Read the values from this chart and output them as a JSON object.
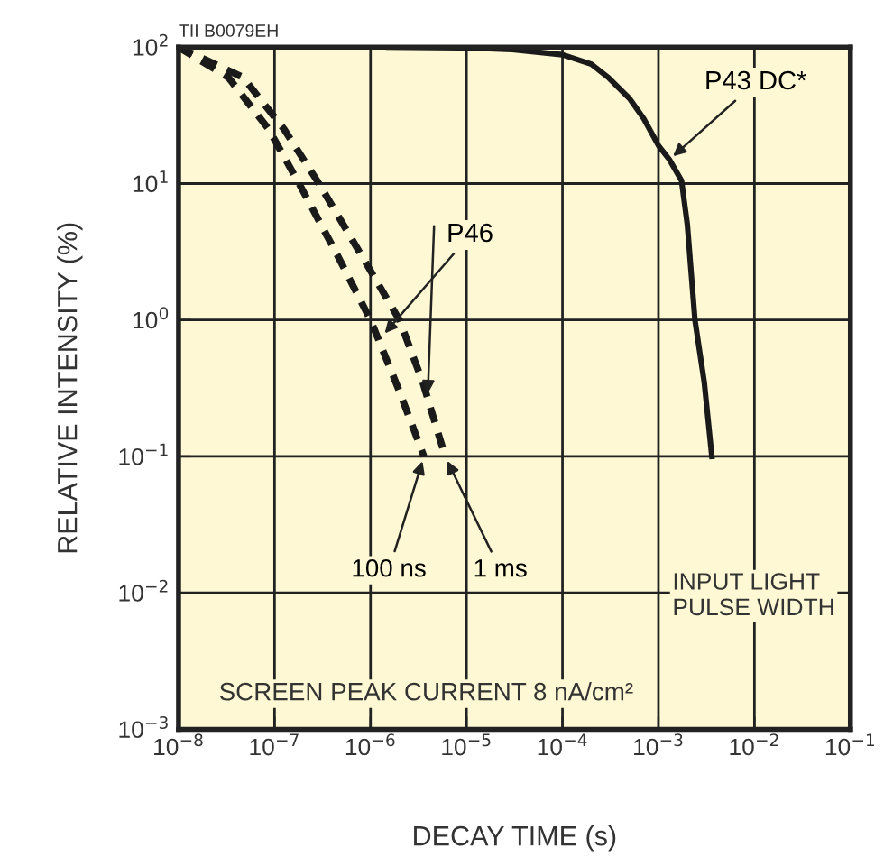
{
  "chart_data": {
    "type": "line",
    "xlabel": "DECAY TIME (s)",
    "ylabel": "RELATIVE INTENSITY (%)",
    "log": "xy",
    "grid": true,
    "xlim": [
      1e-08,
      0.1
    ],
    "ylim": [
      0.001,
      100
    ],
    "xticks": [
      {
        "value": 1e-08,
        "label": "10$^{−8}$"
      },
      {
        "value": 1e-07,
        "label": "10$^{−7}$"
      },
      {
        "value": 1e-06,
        "label": "10$^{−6}$"
      },
      {
        "value": 1e-05,
        "label": "10$^{−5}$"
      },
      {
        "value": 0.0001,
        "label": "10$^{−4}$"
      },
      {
        "value": 0.001,
        "label": "10$^{−3}$"
      },
      {
        "value": 0.01,
        "label": "10$^{−2}$"
      },
      {
        "value": 0.1,
        "label": "10$^{−1}$"
      }
    ],
    "yticks": [
      {
        "value": 0.001,
        "label": "10$^{−3}$"
      },
      {
        "value": 0.01,
        "label": "10$^{−2}$"
      },
      {
        "value": 0.1,
        "label": "10$^{−1}$"
      },
      {
        "value": 1,
        "label": "10$^{0}$"
      },
      {
        "value": 10,
        "label": "10$^{1}$"
      },
      {
        "value": 100,
        "label": "10$^{2}$"
      }
    ],
    "series": [
      {
        "name": "100 ns",
        "color": "#1a1a1a",
        "line_style": "dashed",
        "x": [
          1e-08,
          3.3e-08,
          8.7e-08,
          1.8e-07,
          4.5e-07,
          1e-06,
          2e-06,
          3.6e-06
        ],
        "values": [
          100,
          60,
          25,
          10,
          3,
          1,
          0.3,
          0.1
        ]
      },
      {
        "name": "1 ms",
        "color": "#1a1a1a",
        "line_style": "dashed",
        "x": [
          1e-08,
          4.7e-08,
          1.26e-07,
          2.9e-07,
          8e-07,
          2e-06,
          3.5e-06,
          6e-06
        ],
        "values": [
          100,
          60,
          25,
          10,
          3,
          1,
          0.35,
          0.1
        ]
      },
      {
        "name": "P43 DC*",
        "color": "#1a1a1a",
        "line_style": "solid",
        "x": [
          1.55e-06,
          1e-05,
          3e-05,
          0.0001,
          0.0002,
          0.0003,
          0.0005,
          0.0007,
          0.001,
          0.0013,
          0.00174,
          0.002,
          0.0024,
          0.003,
          0.0036
        ],
        "values": [
          100,
          99,
          96,
          88,
          75,
          60,
          42,
          30,
          19,
          15,
          10.5,
          5,
          1,
          0.35,
          0.1
        ]
      }
    ],
    "annotations": [
      {
        "text": "P46",
        "x": 1.3e-06,
        "y": 0.75
      },
      "INPUT LIGHT\nPULSE WIDTH",
      "SCREEN PEAK CURRENT 8 nA/cm²",
      "TII B0079EH"
    ]
  }
}
